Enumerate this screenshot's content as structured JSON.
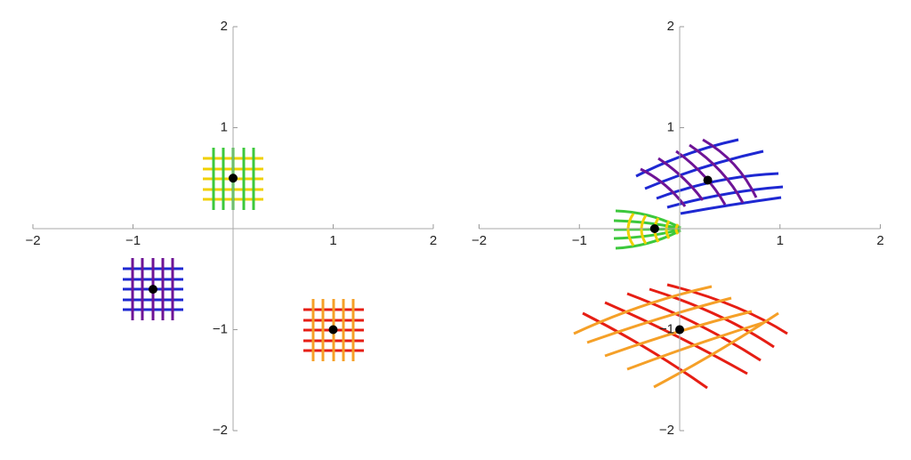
{
  "chart_data": [
    {
      "type": "scatter",
      "x": [
        0,
        -0.8,
        1
      ],
      "y": [
        0.5,
        -0.6,
        -1
      ],
      "color": "#000000",
      "xlim": [
        -2,
        2
      ],
      "ylim": [
        -2,
        2
      ],
      "xticks": [
        {
          "value": -2,
          "label": "−2"
        },
        {
          "value": -1,
          "label": "−1"
        },
        1,
        2
      ],
      "yticks": [
        {
          "value": -2,
          "label": "−2"
        },
        {
          "value": -1,
          "label": "−1"
        },
        1,
        2
      ]
    },
    {
      "type": "scatter",
      "x": [
        -0.25,
        0.28,
        0
      ],
      "y": [
        0,
        0.48,
        -1
      ],
      "color": "#000000",
      "xlim": [
        -2,
        2
      ],
      "ylim": [
        -2,
        2
      ],
      "xticks": [
        {
          "value": -2,
          "label": "−2"
        },
        {
          "value": -1,
          "label": "−1"
        },
        1,
        2
      ],
      "yticks": [
        {
          "value": -2,
          "label": "−2"
        },
        {
          "value": -1,
          "label": "−1"
        },
        1,
        2
      ]
    }
  ]
}
